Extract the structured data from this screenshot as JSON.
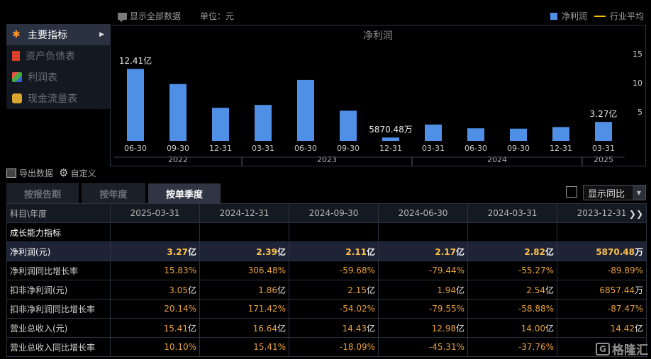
{
  "topbar": {
    "show_all": "显示全部数据",
    "unit": "单位：元",
    "legend_net_profit": "净利润",
    "legend_industry_avg": "行业平均"
  },
  "nav": [
    {
      "label": "主要指标",
      "icon": "star-icon",
      "active": true
    },
    {
      "label": "资产负债表",
      "icon": "document-icon",
      "active": false
    },
    {
      "label": "利润表",
      "icon": "cube-icon",
      "active": false
    },
    {
      "label": "现金流量表",
      "icon": "coins-icon",
      "active": false
    }
  ],
  "colors": {
    "bar": "#4f8fe6",
    "industry_line": "#f0c000",
    "highlight": "#ffc04a"
  },
  "chart_data": {
    "type": "bar",
    "title": "净利润",
    "categories": [
      "06-30",
      "09-30",
      "12-31",
      "03-31",
      "06-30",
      "09-30",
      "12-31",
      "03-31",
      "06-30",
      "09-30",
      "12-31",
      "03-31"
    ],
    "year_groups": [
      {
        "label": "2022",
        "count": 3
      },
      {
        "label": "2023",
        "count": 4
      },
      {
        "label": "2024",
        "count": 4
      },
      {
        "label": "2025",
        "count": 1
      }
    ],
    "series": [
      {
        "name": "净利润",
        "values": [
          12.41,
          9.8,
          5.7,
          6.2,
          10.5,
          5.2,
          0.587,
          2.82,
          2.17,
          2.11,
          2.39,
          3.27
        ]
      }
    ],
    "data_labels": [
      {
        "index": 0,
        "text": "12.41亿"
      },
      {
        "index": 6,
        "text": "5870.48万"
      },
      {
        "index": 11,
        "text": "3.27亿"
      }
    ],
    "y_ticks": [
      "15",
      "10",
      "5"
    ],
    "ylim": [
      0,
      15
    ],
    "y_axis_side": "right",
    "grid": false
  },
  "tools": {
    "export": "导出数据",
    "customize": "自定义"
  },
  "tabs": [
    {
      "label": "按报告期",
      "active": false
    },
    {
      "label": "按年度",
      "active": false
    },
    {
      "label": "按单季度",
      "active": true
    }
  ],
  "yoy_select": "显示同比",
  "table": {
    "header_first": "科目\\年度",
    "columns": [
      "2025-03-31",
      "2024-12-31",
      "2024-09-30",
      "2024-06-30",
      "2024-03-31",
      "2023-12-31"
    ],
    "section": "成长能力指标",
    "rows": [
      {
        "label": "净利润(元)",
        "highlight": true,
        "values": [
          [
            "3.27",
            "亿"
          ],
          [
            "2.39",
            "亿"
          ],
          [
            "2.11",
            "亿"
          ],
          [
            "2.17",
            "亿"
          ],
          [
            "2.82",
            "亿"
          ],
          [
            "5870.48",
            "万"
          ]
        ]
      },
      {
        "label": "净利润同比增长率",
        "highlight": false,
        "values": [
          [
            "15.83%",
            ""
          ],
          [
            "306.48%",
            ""
          ],
          [
            "-59.68%",
            ""
          ],
          [
            "-79.44%",
            ""
          ],
          [
            "-55.27%",
            ""
          ],
          [
            "-89.89%",
            ""
          ]
        ]
      },
      {
        "label": "扣非净利润(元)",
        "highlight": false,
        "values": [
          [
            "3.05",
            "亿"
          ],
          [
            "1.86",
            "亿"
          ],
          [
            "2.15",
            "亿"
          ],
          [
            "1.94",
            "亿"
          ],
          [
            "2.54",
            "亿"
          ],
          [
            "6857.44",
            "万"
          ]
        ]
      },
      {
        "label": "扣非净利润同比增长率",
        "highlight": false,
        "values": [
          [
            "20.14%",
            ""
          ],
          [
            "171.42%",
            ""
          ],
          [
            "-54.02%",
            ""
          ],
          [
            "-79.55%",
            ""
          ],
          [
            "-58.88%",
            ""
          ],
          [
            "-87.47%",
            ""
          ]
        ]
      },
      {
        "label": "营业总收入(元)",
        "highlight": false,
        "values": [
          [
            "15.41",
            "亿"
          ],
          [
            "16.64",
            "亿"
          ],
          [
            "14.43",
            "亿"
          ],
          [
            "12.98",
            "亿"
          ],
          [
            "14.00",
            "亿"
          ],
          [
            "14.42",
            "亿"
          ]
        ]
      },
      {
        "label": "营业总收入同比增长率",
        "highlight": false,
        "values": [
          [
            "10.10%",
            ""
          ],
          [
            "15.41%",
            ""
          ],
          [
            "-18.09%",
            ""
          ],
          [
            "-45.31%",
            ""
          ],
          [
            "-37.76%",
            ""
          ],
          [
            "",
            ""
          ]
        ]
      }
    ]
  },
  "watermark": {
    "mark": "G",
    "text": "格隆汇"
  }
}
